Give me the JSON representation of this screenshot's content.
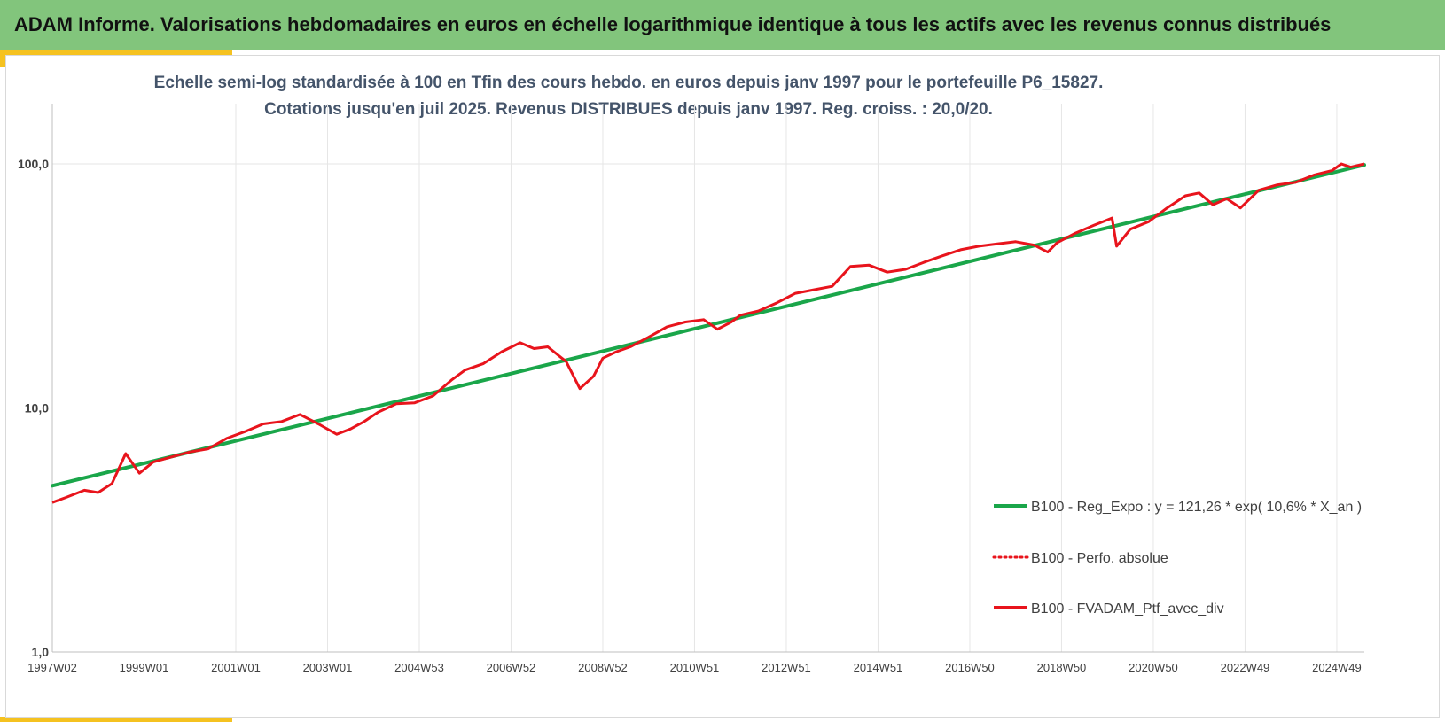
{
  "header": {
    "title": "ADAM Informe. Valorisations hebdomadaires en euros en échelle logarithmique identique à tous les actifs avec les revenus connus distribués"
  },
  "colors": {
    "header_bg": "#82c57c",
    "accent": "#f5c220",
    "regression": "#1aa64a",
    "portfolio": "#e8141c",
    "grid": "#e6e6e6"
  },
  "chart_data": {
    "type": "line",
    "title": "Echelle semi-log standardisée à 100 en Tfin des cours hebdo. en euros depuis janv 1997 pour le portefeuille P6_15827.",
    "subtitle": "Cotations jusqu'en juil 2025. Revenus DISTRIBUES depuis janv 1997. Reg. croiss. : 20,0/20.",
    "y_scale": "log",
    "ylim": [
      1,
      200
    ],
    "yticks": [
      "1,0",
      "10,0",
      "100,0"
    ],
    "ytick_values": [
      1,
      10,
      100
    ],
    "xlim": [
      1997.0,
      2025.6
    ],
    "xticks": [
      "1997W02",
      "1999W01",
      "2001W01",
      "2003W01",
      "2004W53",
      "2006W52",
      "2008W52",
      "2010W51",
      "2012W51",
      "2014W51",
      "2016W50",
      "2018W50",
      "2020W50",
      "2022W49",
      "2024W49"
    ],
    "xtick_years": [
      1997.0,
      1999.0,
      2001.0,
      2003.0,
      2005.0,
      2007.0,
      2009.0,
      2011.0,
      2013.0,
      2015.0,
      2017.0,
      2019.0,
      2021.0,
      2023.0,
      2025.0
    ],
    "grid": true,
    "legend_position": "right",
    "series": [
      {
        "name": "B100 - Reg_Expo : y = 121,26 * exp( 10,6% *  X_an )",
        "style": "solid-thick",
        "x": [
          1997.0,
          2025.6
        ],
        "y": [
          4.8,
          99
        ]
      },
      {
        "name": "B100 - Perfo. absolue",
        "style": "dotted",
        "x": [],
        "y": []
      },
      {
        "name": "B100 - FVADAM_Ptf_avec_div",
        "style": "solid",
        "x": [
          1997.0,
          1997.3,
          1997.7,
          1998.0,
          1998.3,
          1998.6,
          1998.9,
          1999.2,
          1999.6,
          2000.0,
          2000.4,
          2000.8,
          2001.2,
          2001.6,
          2002.0,
          2002.4,
          2002.8,
          2003.2,
          2003.5,
          2003.8,
          2004.1,
          2004.5,
          2004.9,
          2005.3,
          2005.7,
          2006.0,
          2006.4,
          2006.8,
          2007.2,
          2007.5,
          2007.8,
          2008.2,
          2008.5,
          2008.8,
          2009.0,
          2009.3,
          2009.6,
          2010.0,
          2010.4,
          2010.8,
          2011.2,
          2011.5,
          2011.8,
          2012.0,
          2012.4,
          2012.8,
          2013.2,
          2013.6,
          2014.0,
          2014.4,
          2014.8,
          2015.2,
          2015.6,
          2016.0,
          2016.4,
          2016.8,
          2017.2,
          2017.6,
          2018.0,
          2018.4,
          2018.7,
          2018.9,
          2019.3,
          2019.7,
          2020.1,
          2020.2,
          2020.5,
          2020.9,
          2021.3,
          2021.7,
          2022.0,
          2022.3,
          2022.6,
          2022.9,
          2023.3,
          2023.7,
          2024.1,
          2024.5,
          2024.9,
          2025.1,
          2025.3,
          2025.6
        ],
        "y": [
          4.1,
          4.3,
          4.6,
          4.5,
          4.9,
          6.5,
          5.4,
          6.0,
          6.3,
          6.6,
          6.8,
          7.5,
          8.0,
          8.6,
          8.8,
          9.4,
          8.6,
          7.8,
          8.2,
          8.8,
          9.6,
          10.4,
          10.5,
          11.2,
          13.0,
          14.3,
          15.2,
          17.0,
          18.5,
          17.5,
          17.8,
          15.5,
          12.0,
          13.5,
          16.0,
          17.0,
          17.8,
          19.5,
          21.5,
          22.5,
          23.0,
          21.0,
          22.5,
          24.0,
          25.0,
          27.0,
          29.5,
          30.5,
          31.5,
          38.0,
          38.5,
          36.0,
          37.0,
          39.5,
          42.0,
          44.5,
          46.0,
          47.0,
          48.0,
          46.5,
          43.5,
          47.5,
          52.0,
          56.0,
          60.0,
          46.0,
          54.0,
          58.0,
          66.0,
          74.0,
          76.0,
          68.0,
          72.0,
          66.0,
          78.0,
          82.0,
          84.0,
          90.0,
          94.0,
          100.0,
          97.0,
          100.0
        ]
      }
    ]
  }
}
